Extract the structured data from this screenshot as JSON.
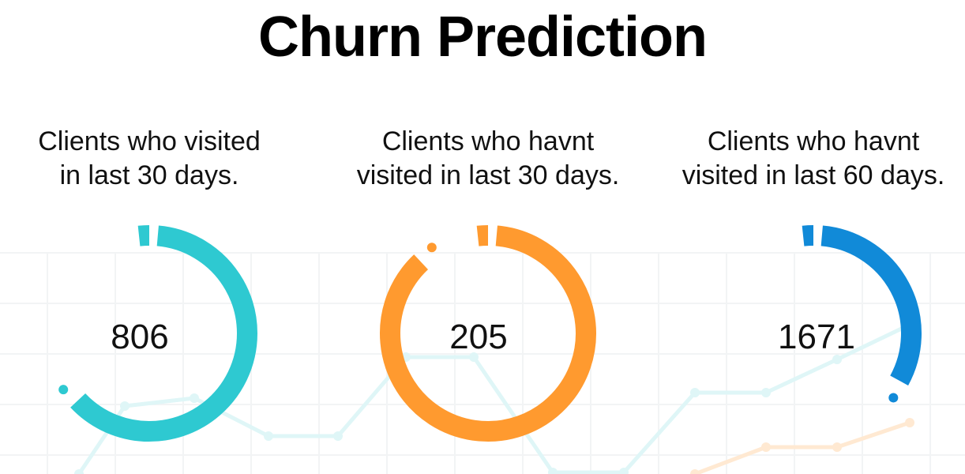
{
  "page": {
    "title": "Churn Prediction"
  },
  "colors": {
    "teal": "#2ec9d1",
    "orange": "#ff9a2f",
    "blue": "#118ad8",
    "grid": "#f1f3f4"
  },
  "cards": [
    {
      "label_line1": "Clients who visited",
      "label_line2": "in last 30 days.",
      "value": "806",
      "color": "#2ec9d1",
      "fill_fraction": 0.63
    },
    {
      "label_line1": "Clients who havnt",
      "label_line2": "visited in last 30 days.",
      "value": "205",
      "color": "#ff9a2f",
      "fill_fraction": 0.88
    },
    {
      "label_line1": "Clients who havnt",
      "label_line2": "visited in last 60 days.",
      "value": "1671",
      "color": "#118ad8",
      "fill_fraction": 0.33
    }
  ]
}
